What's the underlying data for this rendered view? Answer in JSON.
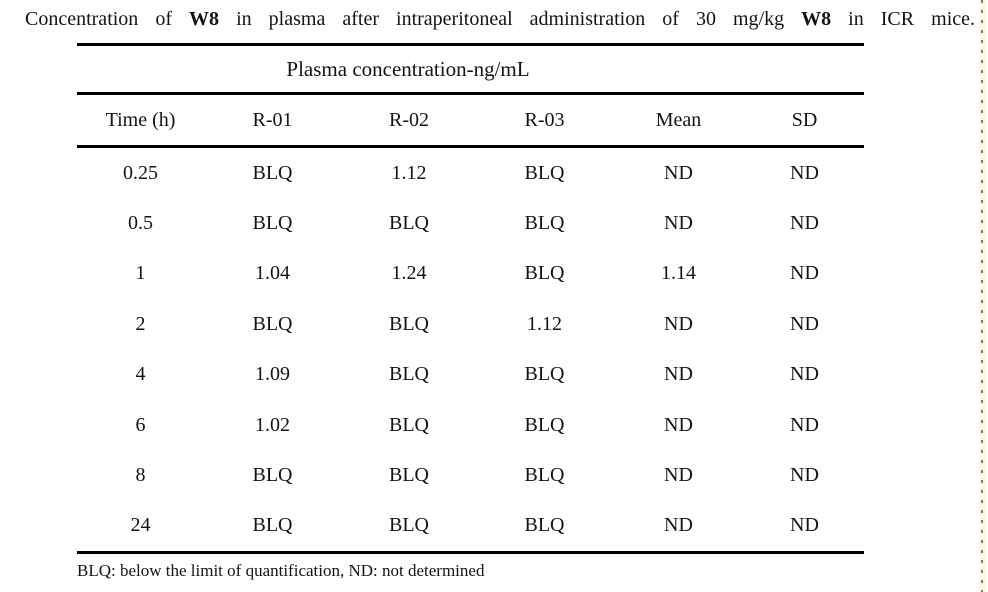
{
  "caption": {
    "part1": "Concentration of ",
    "bold1": "W8",
    "part2": " in plasma after intraperitoneal administration of 30 mg/kg ",
    "bold2": "W8",
    "part3": " in ICR mice."
  },
  "table": {
    "span_header": "Plasma concentration-ng/mL",
    "columns": [
      "Time (h)",
      "R-01",
      "R-02",
      "R-03",
      "Mean",
      "SD"
    ],
    "rows": [
      [
        "0.25",
        "BLQ",
        "1.12",
        "BLQ",
        "ND",
        "ND"
      ],
      [
        "0.5",
        "BLQ",
        "BLQ",
        "BLQ",
        "ND",
        "ND"
      ],
      [
        "1",
        "1.04",
        "1.24",
        "BLQ",
        "1.14",
        "ND"
      ],
      [
        "2",
        "BLQ",
        "BLQ",
        "1.12",
        "ND",
        "ND"
      ],
      [
        "4",
        "1.09",
        "BLQ",
        "BLQ",
        "ND",
        "ND"
      ],
      [
        "6",
        "1.02",
        "BLQ",
        "BLQ",
        "ND",
        "ND"
      ],
      [
        "8",
        "BLQ",
        "BLQ",
        "BLQ",
        "ND",
        "ND"
      ],
      [
        "24",
        "BLQ",
        "BLQ",
        "BLQ",
        "ND",
        "ND"
      ]
    ],
    "footnote": "BLQ: below the limit of quantification, ND: not determined"
  },
  "colors": {
    "rule": "#000000",
    "text": "#141414",
    "page_edge_dash": "#8f7657",
    "page_edge_bg": "#fdf7ea"
  }
}
